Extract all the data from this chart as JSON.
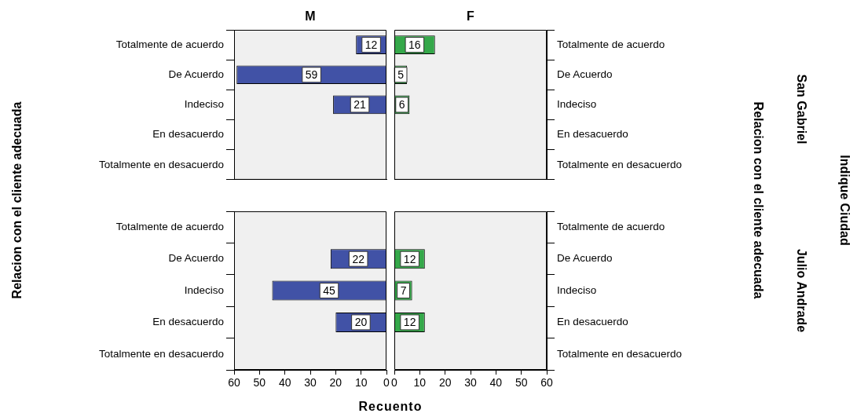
{
  "chart_data": [
    {
      "type": "bar",
      "orientation": "horizontal",
      "title": "M",
      "ylabel": "Relacion con el cliente adecuada",
      "categories": [
        "Totalmente de acuerdo",
        "De Acuerdo",
        "Indeciso",
        "En desacuerdo",
        "Totalmente en desacuerdo"
      ],
      "values": [
        12,
        59,
        21,
        null,
        null
      ],
      "color": "#4152a6",
      "xlim": [
        60,
        0
      ],
      "tick_labels": "y",
      "data_labels": true
    },
    {
      "type": "bar",
      "orientation": "horizontal",
      "title": "F",
      "ylabel": "Relacion con el cliente adecuada",
      "annotations": [
        "San Gabriel",
        "Indique Ciudad"
      ],
      "categories": [
        "Totalmente de acuerdo",
        "De Acuerdo",
        "Indeciso",
        "En desacuerdo",
        "Totalmente en desacuerdo"
      ],
      "values": [
        16,
        5,
        6,
        null,
        null
      ],
      "color": "#35a84a",
      "xlim": [
        0,
        60
      ],
      "tick_labels": "y",
      "data_labels": true
    },
    {
      "type": "bar",
      "orientation": "horizontal",
      "xlabel": "Recuento",
      "categories": [
        "Totalmente de acuerdo",
        "De Acuerdo",
        "Indeciso",
        "En desacuerdo",
        "Totalmente en desacuerdo"
      ],
      "values": [
        null,
        22,
        45,
        20,
        null
      ],
      "color": "#4152a6",
      "xlim": [
        60,
        0
      ],
      "xticks": [
        60,
        50,
        40,
        30,
        20,
        10,
        0
      ],
      "data_labels": true
    },
    {
      "type": "bar",
      "orientation": "horizontal",
      "annotations": [
        "Julio Andrade"
      ],
      "categories": [
        "Totalmente de acuerdo",
        "De Acuerdo",
        "Indeciso",
        "En desacuerdo",
        "Totalmente en desacuerdo"
      ],
      "values": [
        null,
        12,
        7,
        12,
        null
      ],
      "color": "#35a84a",
      "xlim": [
        0,
        60
      ],
      "xticks": [
        0,
        10,
        20,
        30,
        40,
        50,
        60
      ],
      "data_labels": true
    }
  ]
}
